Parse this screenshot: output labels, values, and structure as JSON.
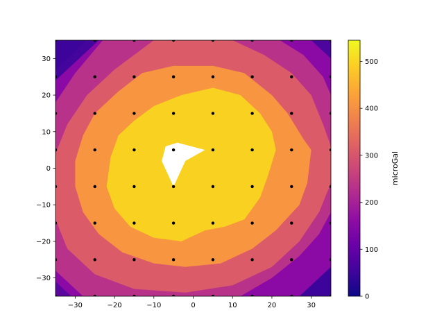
{
  "chart_data": {
    "type": "contour",
    "title": "",
    "xlabel": "",
    "ylabel": "",
    "xlim": [
      -35,
      35
    ],
    "ylim": [
      -35,
      35
    ],
    "xticks": [
      -30,
      -20,
      -10,
      0,
      10,
      20,
      30
    ],
    "yticks": [
      -30,
      -20,
      -10,
      0,
      10,
      20,
      30
    ],
    "colorbar": {
      "label": "microGal",
      "colormap": "plasma",
      "range": [
        0,
        545
      ],
      "ticks": [
        0,
        100,
        200,
        300,
        400,
        500
      ]
    },
    "levels": [
      {
        "min": 100,
        "max": 150,
        "color": "#6a00a8"
      },
      {
        "min": 150,
        "max": 200,
        "color": "#8f0da4"
      },
      {
        "min": 200,
        "max": 250,
        "color": "#b12a90"
      },
      {
        "min": 250,
        "max": 350,
        "color": "#cc4778"
      },
      {
        "min": 350,
        "max": 400,
        "color": "#e16462"
      },
      {
        "min": 400,
        "max": 500,
        "color": "#f89540"
      },
      {
        "min": 500,
        "max": 545,
        "color": "#f0c82a"
      }
    ],
    "region_colors": {
      "corner_dark": "#3c049b",
      "band_purple": "#8b0aa5",
      "band_magenta": "#b93289",
      "band_pink": "#db5c68",
      "band_orange": "#f89540",
      "core_yellow": "#f9d221",
      "hole": "#ffffff"
    },
    "station_points": {
      "x": [
        -35,
        -25,
        -15,
        -5,
        5,
        15,
        25,
        35
      ],
      "y": [
        -35,
        -25,
        -15,
        -5,
        5,
        15,
        25,
        35
      ],
      "color": "#000000"
    },
    "grid": false
  }
}
